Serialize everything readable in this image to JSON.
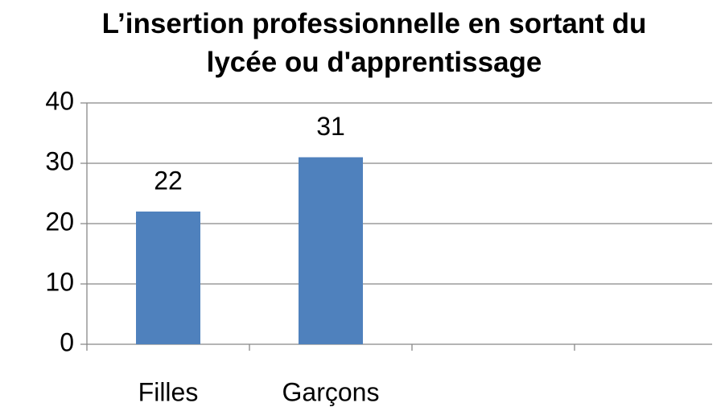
{
  "chart_data": {
    "type": "bar",
    "title": "L’insertion professionnelle en sortant du lycée ou d'apprentissage",
    "categories": [
      "Filles",
      "Garçons",
      null,
      null
    ],
    "values": [
      22,
      31,
      null,
      null
    ],
    "color": "#4f81bd",
    "ylim": [
      0,
      40
    ],
    "yticks": [
      0,
      10,
      20,
      30,
      40
    ],
    "grid": true
  }
}
